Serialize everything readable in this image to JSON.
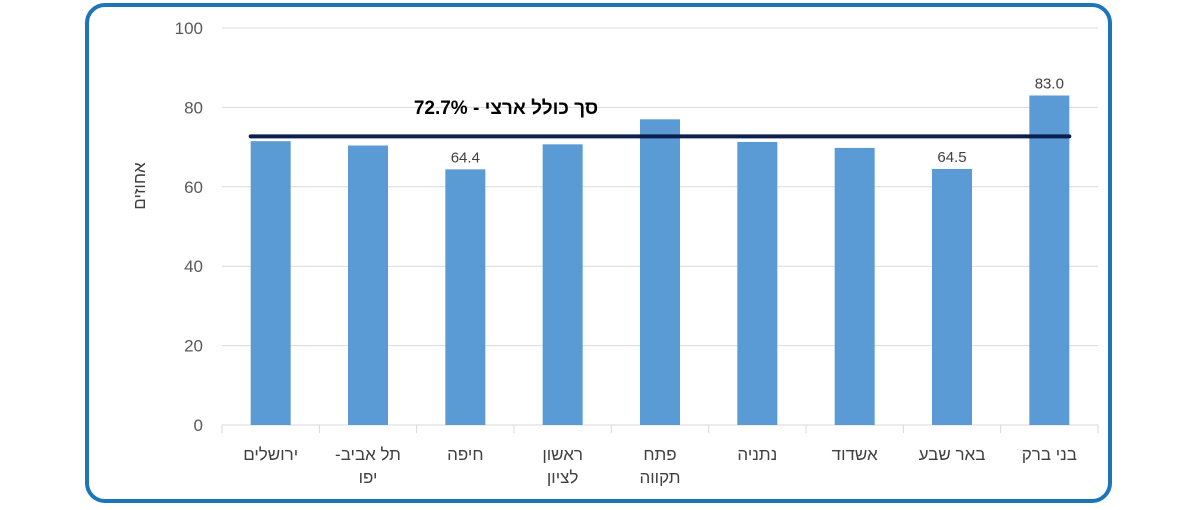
{
  "chart_data": {
    "type": "bar",
    "categories": [
      [
        "ירושלים"
      ],
      [
        "תל אביב-",
        "יפו"
      ],
      [
        "חיפה"
      ],
      [
        "ראשון",
        "לציון"
      ],
      [
        "פתח",
        "תקווה"
      ],
      [
        "נתניה"
      ],
      [
        "אשדוד"
      ],
      [
        "באר שבע"
      ],
      [
        "בני ברק"
      ]
    ],
    "values": [
      71.5,
      70.4,
      64.4,
      70.7,
      77.0,
      71.3,
      69.8,
      64.5,
      83.0
    ],
    "data_labels": [
      {
        "index": 2,
        "text": "64.4"
      },
      {
        "index": 7,
        "text": "64.5"
      },
      {
        "index": 8,
        "text": "83.0"
      }
    ],
    "reference_line": {
      "value": 72.7,
      "label": "סך כולל ארצי - 72.7%"
    },
    "ylabel": "אחוזים",
    "xlabel": "",
    "ylim": [
      0,
      100
    ],
    "yticks": [
      "0",
      "20",
      "40",
      "60",
      "80",
      "100"
    ],
    "grid": true,
    "colors": {
      "bar": "#5b9bd5",
      "reference_line": "#0d1f4f",
      "grid": "#d9d9d9",
      "frame": "#1b75bb"
    }
  }
}
